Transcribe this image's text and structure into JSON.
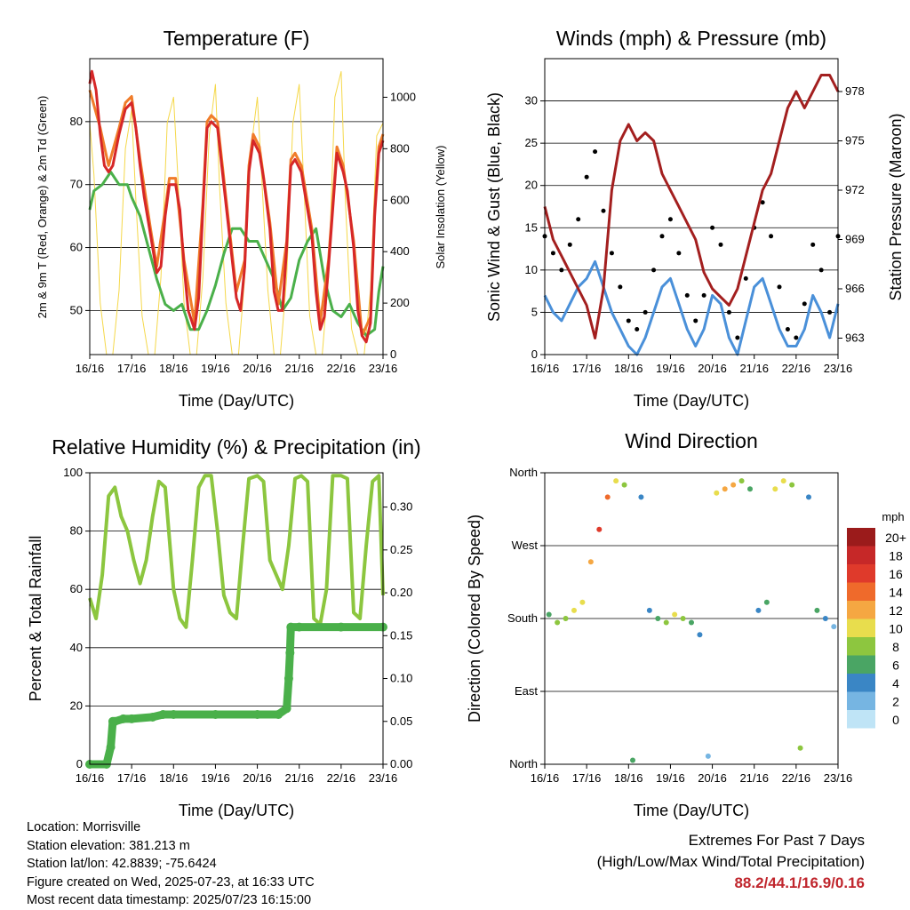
{
  "chart_data": [
    {
      "type": "line",
      "title": "Temperature (F)",
      "xlabel": "Time (Day/UTC)",
      "ylabel": "2m & 9m T (Red, Orange) & 2m Td (Green)",
      "ylabel_right": "Solar Insolation (Yellow)",
      "x_ticks": [
        "16/16",
        "17/16",
        "18/16",
        "19/16",
        "20/16",
        "21/16",
        "22/16",
        "23/16"
      ],
      "ylim": [
        43,
        90
      ],
      "y_ticks": [
        50,
        60,
        70,
        80
      ],
      "ylim_right": [
        0,
        1150
      ],
      "y_ticks_right": [
        0,
        200,
        400,
        600,
        800,
        1000
      ],
      "grid": true,
      "series": [
        {
          "name": "2m T",
          "color": "#d62728",
          "axis": "left",
          "x": [
            0,
            0.05,
            0.15,
            0.25,
            0.35,
            0.45,
            0.55,
            0.7,
            0.85,
            1.0,
            1.1,
            1.2,
            1.3,
            1.45,
            1.6,
            1.7,
            1.8,
            1.9,
            2.05,
            2.15,
            2.25,
            2.35,
            2.5,
            2.6,
            2.7,
            2.8,
            2.9,
            3.05,
            3.15,
            3.25,
            3.4,
            3.5,
            3.6,
            3.7,
            3.8,
            3.9,
            4.05,
            4.15,
            4.3,
            4.4,
            4.5,
            4.6,
            4.7,
            4.8,
            4.9,
            5.05,
            5.15,
            5.3,
            5.4,
            5.5,
            5.6,
            5.7,
            5.8,
            5.9,
            6.05,
            6.15,
            6.3,
            6.4,
            6.5,
            6.6,
            6.7,
            6.8,
            6.9,
            7.0
          ],
          "y": [
            86,
            88,
            85,
            78,
            73,
            72,
            73,
            78,
            82,
            83,
            79,
            73,
            68,
            62,
            56,
            57,
            65,
            70,
            70,
            66,
            57,
            50,
            47,
            52,
            66,
            79,
            80,
            79,
            73,
            67,
            58,
            52,
            50,
            57,
            72,
            77,
            75,
            71,
            63,
            53,
            50,
            50,
            60,
            73,
            74,
            72,
            68,
            62,
            53,
            47,
            49,
            57,
            66,
            75,
            72,
            69,
            60,
            50,
            46,
            45,
            48,
            65,
            75,
            77
          ]
        },
        {
          "name": "9m T",
          "color": "#f07c2a",
          "axis": "left",
          "x": [
            0,
            0.25,
            0.45,
            0.7,
            0.85,
            1.0,
            1.2,
            1.45,
            1.6,
            1.8,
            1.9,
            2.05,
            2.25,
            2.5,
            2.7,
            2.8,
            2.9,
            3.05,
            3.25,
            3.5,
            3.7,
            3.8,
            3.9,
            4.05,
            4.3,
            4.5,
            4.7,
            4.8,
            4.9,
            5.05,
            5.3,
            5.5,
            5.7,
            5.8,
            5.9,
            6.05,
            6.3,
            6.5,
            6.7,
            6.8,
            6.9,
            7.0
          ],
          "y": [
            85,
            79,
            73,
            79,
            83,
            84,
            74,
            63,
            57,
            66,
            71,
            71,
            58,
            48,
            67,
            80,
            81,
            80,
            68,
            53,
            58,
            73,
            78,
            76,
            64,
            51,
            61,
            74,
            75,
            73,
            63,
            48,
            58,
            67,
            76,
            73,
            61,
            46,
            49,
            66,
            76,
            78
          ]
        },
        {
          "name": "2m Td",
          "color": "#4ab04a",
          "axis": "left",
          "x": [
            0,
            0.1,
            0.3,
            0.5,
            0.7,
            0.9,
            1.0,
            1.2,
            1.4,
            1.6,
            1.8,
            2.0,
            2.2,
            2.4,
            2.6,
            2.8,
            3.0,
            3.2,
            3.4,
            3.6,
            3.8,
            4.0,
            4.2,
            4.4,
            4.6,
            4.8,
            5.0,
            5.2,
            5.4,
            5.6,
            5.8,
            6.0,
            6.2,
            6.4,
            6.6,
            6.8,
            6.9,
            7.0
          ],
          "y": [
            66,
            69,
            70,
            72,
            70,
            70,
            68,
            65,
            60,
            55,
            51,
            50,
            51,
            47,
            47,
            50,
            54,
            59,
            63,
            63,
            61,
            61,
            58,
            55,
            50,
            52,
            58,
            61,
            63,
            55,
            50,
            49,
            51,
            48,
            46,
            47,
            53,
            57
          ]
        },
        {
          "name": "Solar Insolation",
          "color": "#f5d84a",
          "axis": "right",
          "x": [
            0,
            0.1,
            0.25,
            0.4,
            0.55,
            0.7,
            0.85,
            1.0,
            1.1,
            1.25,
            1.4,
            1.55,
            1.7,
            1.85,
            2.0,
            2.1,
            2.25,
            2.4,
            2.55,
            2.7,
            2.85,
            3.0,
            3.1,
            3.25,
            3.4,
            3.55,
            3.7,
            3.85,
            4.0,
            4.1,
            4.25,
            4.4,
            4.55,
            4.7,
            4.85,
            5.0,
            5.1,
            5.25,
            5.4,
            5.55,
            5.7,
            5.85,
            6.0,
            6.1,
            6.25,
            6.4,
            6.55,
            6.7,
            6.85,
            7.0
          ],
          "y": [
            900,
            700,
            200,
            0,
            0,
            250,
            800,
            950,
            600,
            150,
            0,
            0,
            300,
            900,
            1000,
            700,
            200,
            0,
            0,
            300,
            850,
            1050,
            650,
            200,
            0,
            0,
            300,
            800,
            1000,
            700,
            250,
            0,
            0,
            300,
            900,
            1050,
            700,
            150,
            0,
            0,
            300,
            1000,
            1100,
            600,
            100,
            0,
            0,
            250,
            850,
            900
          ]
        }
      ]
    },
    {
      "type": "scatter",
      "title": "Winds (mph) & Pressure (mb)",
      "xlabel": "Time (Day/UTC)",
      "ylabel": "Sonic Wind & Gust (Blue, Black)",
      "ylabel_right": "Station Pressure (Maroon)",
      "x_ticks": [
        "16/16",
        "17/16",
        "18/16",
        "19/16",
        "20/16",
        "21/16",
        "22/16",
        "23/16"
      ],
      "ylim": [
        0,
        35
      ],
      "y_ticks": [
        0,
        5,
        10,
        15,
        20,
        25,
        30
      ],
      "ylim_right": [
        962,
        980
      ],
      "y_ticks_right": [
        963,
        966,
        969,
        972,
        975,
        978
      ],
      "grid": true,
      "series": [
        {
          "name": "Sonic Wind",
          "color": "#4a90d9",
          "axis": "left",
          "x": [
            0,
            0.2,
            0.4,
            0.6,
            0.8,
            1.0,
            1.2,
            1.4,
            1.6,
            1.8,
            2.0,
            2.2,
            2.4,
            2.6,
            2.8,
            3.0,
            3.2,
            3.4,
            3.6,
            3.8,
            4.0,
            4.2,
            4.4,
            4.6,
            4.8,
            5.0,
            5.2,
            5.4,
            5.6,
            5.8,
            6.0,
            6.2,
            6.4,
            6.6,
            6.8,
            7.0
          ],
          "y": [
            7,
            5,
            4,
            6,
            8,
            9,
            11,
            8,
            5,
            3,
            1,
            0,
            2,
            5,
            8,
            9,
            6,
            3,
            1,
            3,
            7,
            6,
            2,
            0,
            4,
            8,
            9,
            6,
            3,
            1,
            1,
            3,
            7,
            5,
            2,
            6
          ]
        },
        {
          "name": "Gust",
          "color": "#000000",
          "axis": "left",
          "x": [
            0,
            0.2,
            0.4,
            0.6,
            0.8,
            1.0,
            1.2,
            1.4,
            1.6,
            1.8,
            2.0,
            2.2,
            2.4,
            2.6,
            2.8,
            3.0,
            3.2,
            3.4,
            3.6,
            3.8,
            4.0,
            4.2,
            4.4,
            4.6,
            4.8,
            5.0,
            5.2,
            5.4,
            5.6,
            5.8,
            6.0,
            6.2,
            6.4,
            6.6,
            6.8,
            7.0
          ],
          "y": [
            14,
            12,
            10,
            13,
            16,
            21,
            24,
            17,
            12,
            8,
            4,
            3,
            5,
            10,
            14,
            16,
            12,
            7,
            4,
            7,
            15,
            13,
            5,
            2,
            9,
            15,
            18,
            14,
            8,
            3,
            2,
            6,
            13,
            10,
            5,
            14
          ]
        },
        {
          "name": "Station Pressure",
          "color": "#a31f1f",
          "axis": "right",
          "x": [
            0,
            0.2,
            0.4,
            0.6,
            0.8,
            1.0,
            1.2,
            1.4,
            1.6,
            1.8,
            2.0,
            2.2,
            2.4,
            2.6,
            2.8,
            3.0,
            3.2,
            3.4,
            3.6,
            3.8,
            4.0,
            4.2,
            4.4,
            4.6,
            4.8,
            5.0,
            5.2,
            5.4,
            5.6,
            5.8,
            6.0,
            6.2,
            6.4,
            6.6,
            6.8,
            7.0
          ],
          "y": [
            971,
            969,
            968,
            967,
            966,
            965,
            963,
            966,
            972,
            975,
            976,
            975,
            975.5,
            975,
            973,
            972,
            971,
            970,
            969,
            967,
            966,
            965.5,
            965,
            966,
            968,
            970,
            972,
            973,
            975,
            977,
            978,
            977,
            978,
            979,
            979,
            978
          ]
        }
      ]
    },
    {
      "type": "line",
      "title": "Relative Humidity (%) & Precipitation (in)",
      "xlabel": "Time (Day/UTC)",
      "ylabel": "Percent & Total Rainfall",
      "x_ticks": [
        "16/16",
        "17/16",
        "18/16",
        "19/16",
        "20/16",
        "21/16",
        "22/16",
        "23/16"
      ],
      "ylim": [
        0,
        100
      ],
      "y_ticks": [
        0,
        20,
        40,
        60,
        80,
        100
      ],
      "ylim_right": [
        0,
        0.34
      ],
      "y_ticks_right": [
        "0.00",
        "0.05",
        "0.10",
        "0.15",
        "0.20",
        "0.25",
        "0.30"
      ],
      "grid": true,
      "series": [
        {
          "name": "Relative Humidity",
          "color": "#8cc63f",
          "axis": "left",
          "x": [
            0,
            0.15,
            0.3,
            0.45,
            0.6,
            0.75,
            0.9,
            1.05,
            1.2,
            1.35,
            1.5,
            1.65,
            1.8,
            2.0,
            2.15,
            2.3,
            2.45,
            2.6,
            2.75,
            2.9,
            3.05,
            3.2,
            3.35,
            3.5,
            3.65,
            3.8,
            4.0,
            4.15,
            4.3,
            4.45,
            4.6,
            4.75,
            4.9,
            5.05,
            5.2,
            5.35,
            5.5,
            5.65,
            5.8,
            6.0,
            6.15,
            6.3,
            6.45,
            6.6,
            6.75,
            6.9,
            7.0
          ],
          "y": [
            57,
            50,
            65,
            92,
            95,
            85,
            80,
            70,
            62,
            70,
            85,
            97,
            95,
            60,
            50,
            47,
            70,
            95,
            99,
            99,
            80,
            58,
            52,
            50,
            75,
            98,
            99,
            97,
            70,
            65,
            60,
            75,
            98,
            99,
            97,
            50,
            48,
            60,
            99,
            99,
            98,
            52,
            50,
            75,
            97,
            99,
            58
          ]
        },
        {
          "name": "Total Rainfall",
          "color": "#4ab04a",
          "axis": "right",
          "x": [
            0,
            0.4,
            0.5,
            0.55,
            0.6,
            0.8,
            1.0,
            1.5,
            1.75,
            2.0,
            3.0,
            4.0,
            4.5,
            4.7,
            4.75,
            4.78,
            4.8,
            5.0,
            6.0,
            7.0
          ],
          "y": [
            0,
            0,
            0.02,
            0.05,
            0.05,
            0.053,
            0.053,
            0.055,
            0.058,
            0.058,
            0.058,
            0.058,
            0.058,
            0.065,
            0.1,
            0.13,
            0.16,
            0.16,
            0.16,
            0.16
          ]
        }
      ]
    },
    {
      "type": "scatter",
      "title": "Wind Direction",
      "xlabel": "Time (Day/UTC)",
      "ylabel": "Direction (Colored By Speed)",
      "x_ticks": [
        "16/16",
        "17/16",
        "18/16",
        "19/16",
        "20/16",
        "21/16",
        "22/16",
        "23/16"
      ],
      "ylim": [
        0,
        360
      ],
      "y_ticks": [
        "North",
        "East",
        "South",
        "West",
        "North"
      ],
      "y_tick_values": [
        0,
        90,
        180,
        270,
        360
      ],
      "grid": true,
      "legend": {
        "title": "mph",
        "labels": [
          "20+",
          "18",
          "16",
          "14",
          "12",
          "10",
          "8",
          "6",
          "4",
          "2",
          "0"
        ],
        "colors": [
          "#9b1b1b",
          "#c62828",
          "#df3a2b",
          "#ef6a2b",
          "#f5a742",
          "#e8dd4d",
          "#8dc63f",
          "#4aa564",
          "#3a86c5",
          "#76b5e2",
          "#bfe4f6"
        ],
        "position": "right"
      },
      "series": [
        {
          "name": "Direction",
          "x": [
            0.1,
            0.3,
            0.5,
            0.7,
            0.9,
            1.1,
            1.3,
            1.5,
            1.7,
            1.9,
            2.1,
            2.3,
            2.5,
            2.7,
            2.9,
            3.1,
            3.3,
            3.5,
            3.7,
            3.9,
            4.1,
            4.3,
            4.5,
            4.7,
            4.9,
            5.1,
            5.3,
            5.5,
            5.7,
            5.9,
            6.1,
            6.3,
            6.5,
            6.7,
            6.9
          ],
          "y": [
            185,
            175,
            180,
            190,
            200,
            250,
            290,
            330,
            350,
            345,
            5,
            330,
            190,
            180,
            175,
            185,
            180,
            175,
            160,
            10,
            335,
            340,
            345,
            350,
            340,
            190,
            200,
            340,
            350,
            345,
            20,
            330,
            190,
            180,
            170
          ],
          "speed": [
            6,
            8,
            7,
            10,
            9,
            12,
            15,
            14,
            10,
            8,
            5,
            3,
            4,
            6,
            8,
            9,
            7,
            5,
            3,
            2,
            10,
            12,
            11,
            8,
            5,
            4,
            6,
            9,
            10,
            8,
            7,
            4,
            5,
            3,
            2
          ]
        }
      ]
    }
  ],
  "info": {
    "location": "Location: Morrisville",
    "elevation": "Station elevation: 381.213 m",
    "latlon": "Station lat/lon: 42.8839; -75.6424",
    "created": "Figure created on Wed, 2025-07-23, at 16:33 UTC",
    "recent": "Most recent data timestamp: 2025/07/23 16:15:00"
  },
  "extremes": {
    "line1": "Extremes For Past 7 Days",
    "line2": "(High/Low/Max Wind/Total Precipitation)",
    "values": "88.2/44.1/16.9/0.16"
  }
}
